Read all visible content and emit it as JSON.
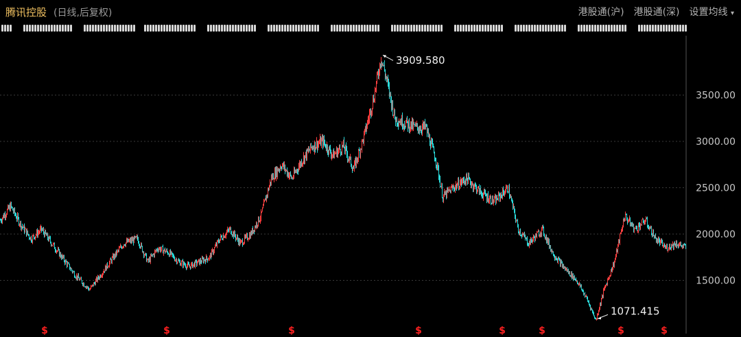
{
  "header": {
    "title": "腾讯控股",
    "subtitle": "(日线,后复权)",
    "links": [
      "港股通(沪)",
      "港股通(深)",
      "设置均线"
    ],
    "dropdown_glyph": "▾"
  },
  "colors": {
    "up": "#ff4040",
    "down": "#2ad9d9",
    "grid": "#3a3a3a",
    "axis_text": "#c8c8c8",
    "marker": "#ff2020"
  },
  "chart_data": {
    "type": "candlestick",
    "ylim": [
      1000,
      4000
    ],
    "yticks": [
      1500,
      2000,
      2500,
      3000,
      3500
    ],
    "ytick_labels": [
      "1500.00",
      "2000.00",
      "2500.00",
      "3000.00",
      "3500.00"
    ],
    "annotations": [
      {
        "label": "3909.580",
        "value": 3909.58,
        "type": "high"
      },
      {
        "label": "1071.415",
        "value": 1071.415,
        "type": "low"
      }
    ],
    "price_path_index": [
      0,
      15,
      30,
      45,
      60,
      80,
      95,
      110,
      130,
      150,
      165,
      180,
      200,
      215,
      230,
      245,
      260,
      275,
      290,
      305,
      320,
      335,
      350,
      365,
      380,
      395,
      410,
      425,
      440,
      455,
      470,
      485,
      500,
      515,
      530,
      545,
      555,
      562,
      575,
      590,
      605,
      620,
      635,
      645,
      660,
      680,
      700,
      720,
      740,
      755,
      770,
      790,
      805,
      820,
      840,
      855,
      868,
      880,
      895,
      910,
      925,
      940,
      955,
      970,
      985,
      1000
    ],
    "price_path": [
      2150,
      2300,
      2100,
      1950,
      2050,
      1850,
      1700,
      1550,
      1400,
      1600,
      1750,
      1900,
      1950,
      1700,
      1850,
      1800,
      1700,
      1650,
      1700,
      1750,
      1950,
      2050,
      1900,
      2000,
      2200,
      2600,
      2750,
      2600,
      2800,
      2950,
      3000,
      2850,
      2950,
      2700,
      3050,
      3500,
      3909.58,
      3700,
      3250,
      3200,
      3150,
      3150,
      2800,
      2400,
      2500,
      2600,
      2450,
      2350,
      2500,
      2050,
      1900,
      2050,
      1800,
      1650,
      1500,
      1300,
      1071.415,
      1400,
      1700,
      2200,
      2050,
      2150,
      1950,
      1850,
      1900,
      1850
    ],
    "dividend_marker_index": [
      65,
      243,
      425,
      610,
      732,
      790,
      905,
      968
    ],
    "dividend_marker_label": "$"
  }
}
